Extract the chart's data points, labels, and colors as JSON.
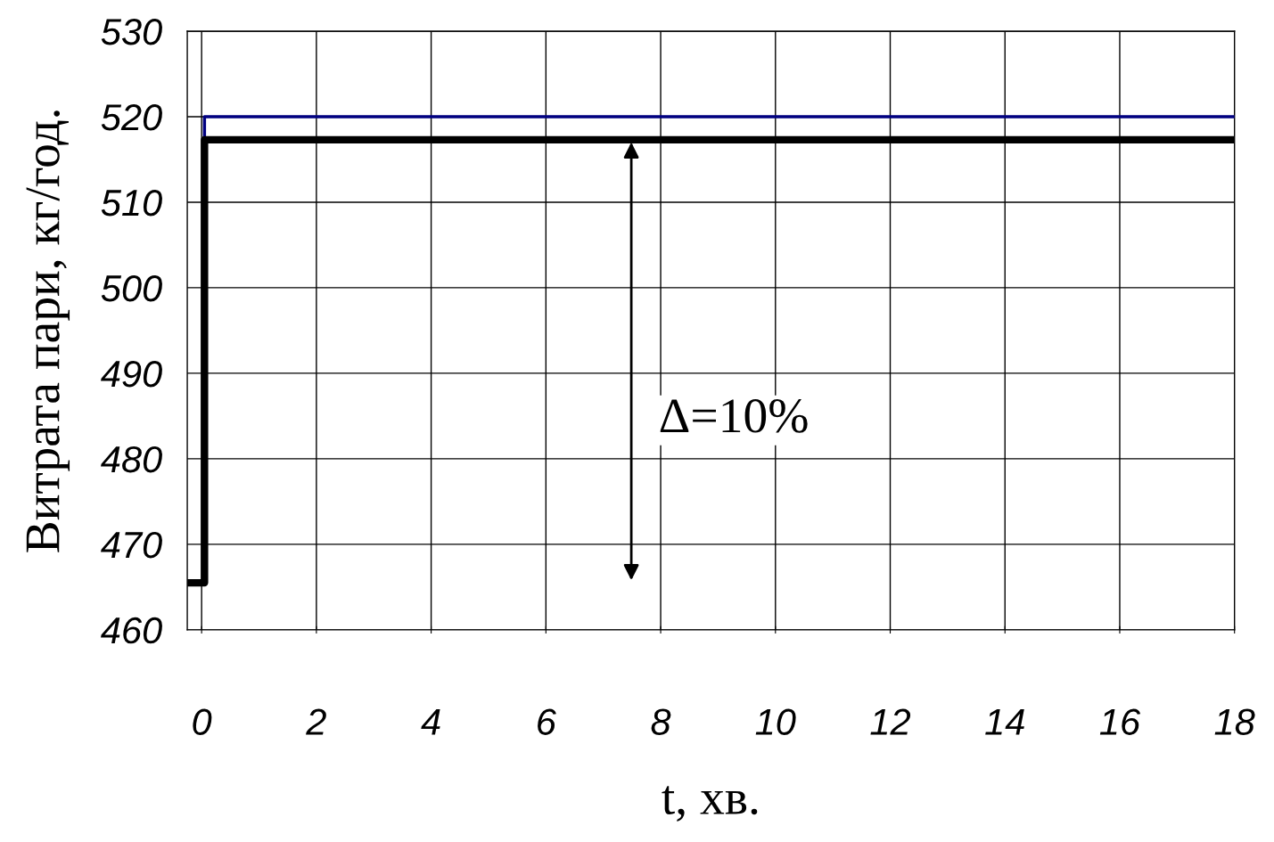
{
  "chart_data": {
    "type": "line",
    "xlabel": "t, хв.",
    "ylabel": "Витрата пари, кг/год.",
    "xlim": [
      -0.25,
      18
    ],
    "ylim": [
      460,
      530
    ],
    "xticks": [
      0,
      2,
      4,
      6,
      8,
      10,
      12,
      14,
      16,
      18
    ],
    "yticks": [
      460,
      470,
      480,
      490,
      500,
      510,
      520,
      530
    ],
    "grid": true,
    "legend": false,
    "series": [
      {
        "color": "#000080",
        "x": [
          0.05,
          0.05,
          18
        ],
        "values": [
          517.3,
          520,
          520
        ]
      },
      {
        "color": "#000000",
        "x": [
          -0.25,
          0.05,
          0.05,
          18
        ],
        "values": [
          465.5,
          465.5,
          517.3,
          517.3
        ]
      }
    ],
    "annotations": [
      "Δ=10%"
    ]
  }
}
